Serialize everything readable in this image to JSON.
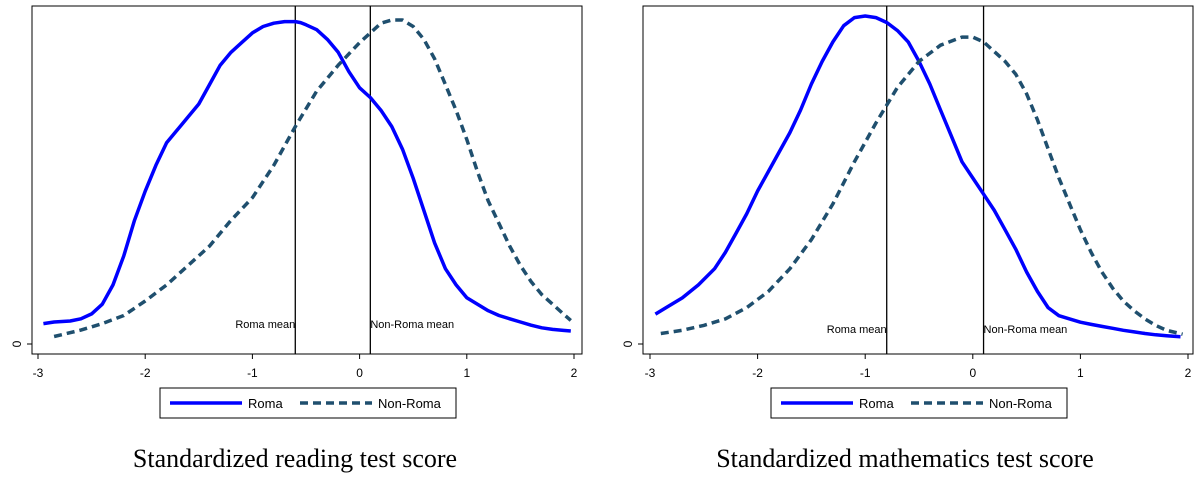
{
  "chart_data": [
    {
      "type": "line",
      "title": "",
      "caption": "Standardized reading test score",
      "xlabel": "",
      "ylabel": "",
      "xlim": [
        -3.05,
        2.05
      ],
      "ylim": [
        0,
        1
      ],
      "xticks": [
        "-3",
        "-2",
        "-1",
        "0",
        "1",
        "2"
      ],
      "yticks": [
        "0"
      ],
      "grid": false,
      "legend_position": "bottom",
      "vlines": [
        {
          "x": -0.6,
          "label": "Roma mean"
        },
        {
          "x": 0.1,
          "label": "Non-Roma mean"
        }
      ],
      "series": [
        {
          "name": "Roma",
          "style": "solid",
          "color": "#0000ff",
          "x": [
            -2.95,
            -2.85,
            -2.7,
            -2.6,
            -2.5,
            -2.4,
            -2.3,
            -2.2,
            -2.1,
            -2.0,
            -1.9,
            -1.8,
            -1.7,
            -1.6,
            -1.5,
            -1.4,
            -1.3,
            -1.2,
            -1.1,
            -1.0,
            -0.9,
            -0.8,
            -0.7,
            -0.6,
            -0.55,
            -0.5,
            -0.4,
            -0.3,
            -0.2,
            -0.1,
            0.0,
            0.1,
            0.2,
            0.3,
            0.4,
            0.5,
            0.6,
            0.7,
            0.8,
            0.9,
            1.0,
            1.1,
            1.2,
            1.3,
            1.4,
            1.5,
            1.6,
            1.7,
            1.8,
            1.9,
            1.97
          ],
          "y": [
            0.06,
            0.065,
            0.068,
            0.075,
            0.09,
            0.12,
            0.18,
            0.27,
            0.38,
            0.47,
            0.55,
            0.62,
            0.66,
            0.7,
            0.74,
            0.8,
            0.86,
            0.9,
            0.93,
            0.96,
            0.98,
            0.99,
            0.995,
            0.995,
            0.992,
            0.985,
            0.97,
            0.94,
            0.9,
            0.84,
            0.79,
            0.76,
            0.72,
            0.67,
            0.6,
            0.51,
            0.41,
            0.31,
            0.23,
            0.18,
            0.14,
            0.12,
            0.1,
            0.085,
            0.075,
            0.065,
            0.055,
            0.047,
            0.042,
            0.039,
            0.037
          ]
        },
        {
          "name": "Non-Roma",
          "style": "dashed",
          "color": "#1f4f6e",
          "x": [
            -2.85,
            -2.6,
            -2.4,
            -2.2,
            -2.0,
            -1.8,
            -1.6,
            -1.4,
            -1.2,
            -1.0,
            -0.8,
            -0.6,
            -0.4,
            -0.2,
            0.0,
            0.1,
            0.2,
            0.3,
            0.4,
            0.5,
            0.6,
            0.7,
            0.8,
            0.9,
            1.0,
            1.1,
            1.2,
            1.3,
            1.4,
            1.5,
            1.6,
            1.7,
            1.8,
            1.9,
            1.97
          ],
          "y": [
            0.02,
            0.04,
            0.06,
            0.085,
            0.13,
            0.18,
            0.24,
            0.3,
            0.38,
            0.45,
            0.55,
            0.67,
            0.78,
            0.86,
            0.93,
            0.96,
            0.99,
            1.0,
            1.0,
            0.98,
            0.94,
            0.88,
            0.8,
            0.72,
            0.63,
            0.53,
            0.44,
            0.37,
            0.3,
            0.24,
            0.19,
            0.15,
            0.12,
            0.09,
            0.07
          ]
        }
      ],
      "legend": [
        "Roma",
        "Non-Roma"
      ]
    },
    {
      "type": "line",
      "title": "",
      "caption": "Standardized mathematics test score",
      "xlabel": "",
      "ylabel": "",
      "xlim": [
        -3.05,
        2.05
      ],
      "ylim": [
        0,
        1
      ],
      "xticks": [
        "-3",
        "-2",
        "-1",
        "0",
        "1",
        "2"
      ],
      "yticks": [
        "0"
      ],
      "grid": false,
      "legend_position": "bottom",
      "vlines": [
        {
          "x": -0.8,
          "label": "Roma mean"
        },
        {
          "x": 0.1,
          "label": "Non-Roma mean"
        }
      ],
      "series": [
        {
          "name": "Roma",
          "style": "solid",
          "color": "#0000ff",
          "x": [
            -2.95,
            -2.85,
            -2.7,
            -2.55,
            -2.4,
            -2.3,
            -2.2,
            -2.1,
            -2.0,
            -1.9,
            -1.8,
            -1.7,
            -1.6,
            -1.5,
            -1.4,
            -1.3,
            -1.2,
            -1.1,
            -1.0,
            -0.9,
            -0.8,
            -0.7,
            -0.6,
            -0.5,
            -0.4,
            -0.3,
            -0.2,
            -0.1,
            0.0,
            0.1,
            0.2,
            0.3,
            0.4,
            0.5,
            0.6,
            0.7,
            0.8,
            0.9,
            1.0,
            1.1,
            1.2,
            1.3,
            1.4,
            1.5,
            1.6,
            1.7,
            1.8,
            1.93
          ],
          "y": [
            0.08,
            0.1,
            0.13,
            0.17,
            0.22,
            0.27,
            0.33,
            0.39,
            0.46,
            0.52,
            0.58,
            0.64,
            0.71,
            0.79,
            0.86,
            0.92,
            0.97,
            0.995,
            1.0,
            0.995,
            0.98,
            0.955,
            0.92,
            0.86,
            0.79,
            0.71,
            0.63,
            0.55,
            0.5,
            0.45,
            0.4,
            0.34,
            0.28,
            0.21,
            0.15,
            0.1,
            0.075,
            0.065,
            0.055,
            0.048,
            0.042,
            0.036,
            0.03,
            0.025,
            0.02,
            0.016,
            0.013,
            0.01
          ]
        },
        {
          "name": "Non-Roma",
          "style": "dashed",
          "color": "#1f4f6e",
          "x": [
            -2.9,
            -2.7,
            -2.5,
            -2.3,
            -2.1,
            -1.9,
            -1.7,
            -1.5,
            -1.3,
            -1.1,
            -0.9,
            -0.7,
            -0.5,
            -0.3,
            -0.1,
            0.0,
            0.1,
            0.2,
            0.3,
            0.4,
            0.5,
            0.6,
            0.7,
            0.8,
            0.9,
            1.0,
            1.1,
            1.2,
            1.3,
            1.4,
            1.5,
            1.6,
            1.7,
            1.8,
            1.95
          ],
          "y": [
            0.02,
            0.03,
            0.045,
            0.065,
            0.1,
            0.15,
            0.22,
            0.31,
            0.42,
            0.55,
            0.67,
            0.78,
            0.86,
            0.91,
            0.935,
            0.935,
            0.92,
            0.89,
            0.86,
            0.82,
            0.76,
            0.68,
            0.59,
            0.5,
            0.42,
            0.34,
            0.27,
            0.21,
            0.16,
            0.12,
            0.09,
            0.065,
            0.045,
            0.03,
            0.018
          ]
        }
      ],
      "legend": [
        "Roma",
        "Non-Roma"
      ]
    }
  ]
}
